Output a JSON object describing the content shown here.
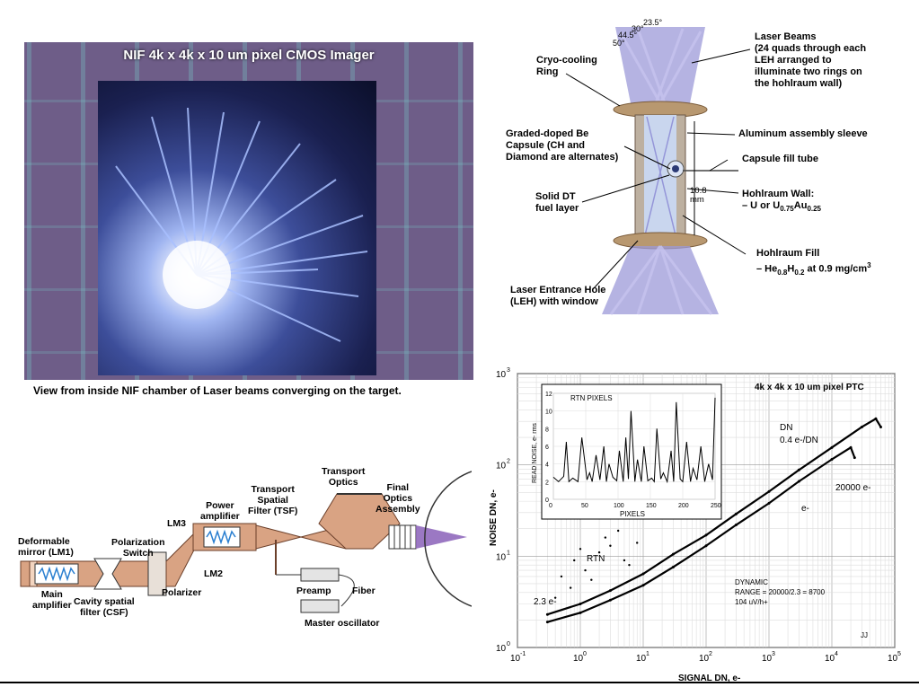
{
  "imager": {
    "title": "NIF 4k x 4k x 10 um pixel CMOS Imager",
    "caption": "View from inside NIF chamber of Laser beams converging on the target."
  },
  "hohlraum": {
    "angles": [
      "23.5°",
      "30°",
      "44.5°",
      "50°"
    ],
    "labels": {
      "laser_beams": [
        "Laser Beams",
        "(24 quads through each",
        "LEH arranged to",
        "illuminate two rings on",
        "the hohlraum wall)"
      ],
      "cryo": [
        "Cryo-cooling",
        "Ring"
      ],
      "sleeve": "Aluminum assembly sleeve",
      "capsule": [
        "Graded-doped Be",
        "Capsule (CH and",
        "Diamond are alternates)"
      ],
      "fill_tube": "Capsule fill tube",
      "dt": [
        "Solid DT",
        "fuel layer"
      ],
      "dim": [
        "10.8",
        "mm"
      ],
      "wall_title": "Hohlraum Wall:",
      "wall_mat_1": "– U or U",
      "wall_sub_1": "0.75",
      "wall_mat_2": "Au",
      "wall_sub_2": "0.25",
      "fill_title": "Hohlraum Fill",
      "fill_1": "– He",
      "fill_sub_1": "0.8",
      "fill_2": "H",
      "fill_sub_2": "0.2",
      "fill_3": " at 0.9 mg/cm",
      "fill_sup": "3",
      "leh": [
        "Laser Entrance Hole",
        "(LEH) with window"
      ]
    }
  },
  "laser_chain": {
    "labels": {
      "deformable": [
        "Deformable",
        "mirror (LM1)"
      ],
      "main_amp": [
        "Main",
        "amplifier"
      ],
      "cavity": [
        "Cavity spatial",
        "filter (CSF)"
      ],
      "pol_switch": [
        "Polarization",
        "Switch"
      ],
      "polarizer": "Polarizer",
      "lm3": "LM3",
      "lm2": "LM2",
      "power_amp": [
        "Power",
        "amplifier"
      ],
      "tsf": [
        "Transport",
        "Spatial",
        "Filter (TSF)"
      ],
      "transport_optics": [
        "Transport",
        "Optics"
      ],
      "final_optics": [
        "Final",
        "Optics",
        "Assembly"
      ],
      "preamp": "Preamp",
      "fiber": "Fiber",
      "master_osc": "Master oscillator"
    }
  },
  "chart_data": {
    "type": "scatter",
    "title": "4k x 4k x 10 um pixel PTC",
    "xlabel": "SIGNAL DN, e-",
    "ylabel": "NOISE DN, e-",
    "x_scale": "log",
    "y_scale": "log",
    "xlim": [
      0.1,
      100000
    ],
    "ylim": [
      1,
      1000
    ],
    "x_ticks": [
      "10-1",
      "100",
      "101",
      "102",
      "103",
      "104",
      "105"
    ],
    "y_ticks": [
      "100",
      "101",
      "102",
      "103"
    ],
    "grid": true,
    "series": [
      {
        "name": "DN",
        "x": [
          0.3,
          1,
          3,
          10,
          30,
          100,
          300,
          1000,
          3000,
          10000,
          30000,
          50000,
          60000
        ],
        "y": [
          2.3,
          3.0,
          4.2,
          6.4,
          10.5,
          17,
          29,
          51,
          88,
          155,
          260,
          320,
          260
        ]
      },
      {
        "name": "e-",
        "x": [
          0.3,
          1,
          3,
          10,
          30,
          100,
          300,
          1000,
          3000,
          10000,
          20000,
          23000
        ],
        "y": [
          1.9,
          2.4,
          3.3,
          4.8,
          7.6,
          13,
          22,
          38,
          66,
          115,
          155,
          120
        ]
      },
      {
        "name": "RTN",
        "x": [
          0.5,
          0.8,
          1.2,
          2,
          3,
          5,
          0.7,
          1.5,
          2.5,
          4,
          0.4,
          1,
          6,
          8
        ],
        "y": [
          6,
          9,
          7,
          11,
          13,
          9,
          4.5,
          5.5,
          16,
          19,
          3.5,
          12,
          8,
          14
        ]
      }
    ],
    "annotations": {
      "dn": "DN",
      "dn_gain": "0.4  e-/DN",
      "e20000": "20000 e-",
      "e_minus": "e-",
      "rtn": "RTN",
      "floor": "2.3 e-",
      "dynamic_1": "DYNAMIC",
      "dynamic_2": "RANGE = 20000/2.3  = 8700",
      "dynamic_3": "104 uV/h+",
      "jj": "JJ"
    },
    "inset": {
      "type": "line",
      "title": "RTN PIXELS",
      "xlabel": "PIXELS",
      "ylabel": "READ NOISE, e- rms",
      "xlim": [
        0,
        250
      ],
      "ylim": [
        0,
        12
      ],
      "x_ticks": [
        "0",
        "50",
        "100",
        "150",
        "200",
        "250"
      ],
      "y_ticks": [
        "0",
        "2",
        "4",
        "6",
        "8",
        "10",
        "12"
      ],
      "x": [
        0,
        8,
        16,
        20,
        24,
        30,
        38,
        44,
        52,
        56,
        60,
        66,
        72,
        78,
        82,
        86,
        92,
        98,
        102,
        108,
        112,
        116,
        120,
        126,
        130,
        136,
        140,
        146,
        152,
        156,
        160,
        166,
        170,
        176,
        182,
        186,
        190,
        196,
        200,
        206,
        212,
        216,
        222,
        228,
        234,
        240,
        246,
        250
      ],
      "y": [
        2.5,
        2,
        2.6,
        6.5,
        2,
        2.4,
        2,
        7,
        2.2,
        3,
        2,
        5,
        2.2,
        6,
        2,
        4,
        2.5,
        2.1,
        5.5,
        2,
        7,
        2.3,
        10,
        2,
        4.5,
        2,
        6,
        2.1,
        2.4,
        2,
        8,
        2.3,
        3,
        2,
        5.5,
        2,
        11,
        2.3,
        2,
        6.5,
        2,
        3.5,
        2.2,
        6,
        2,
        4,
        2.2,
        11.5
      ]
    }
  }
}
